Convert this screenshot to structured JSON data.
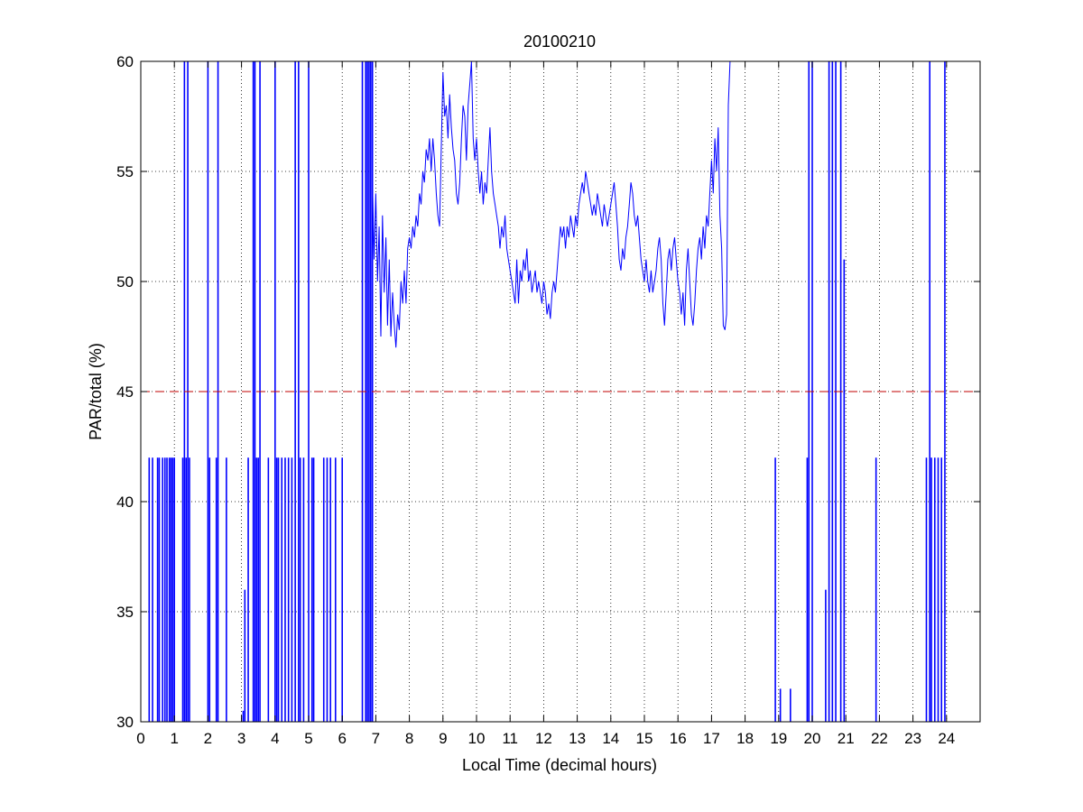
{
  "chart_data": {
    "type": "line",
    "title": "20100210",
    "xlabel": "Local Time (decimal hours)",
    "ylabel": "PAR/total (%)",
    "xlim": [
      0,
      25
    ],
    "ylim": [
      30,
      60
    ],
    "xticks": [
      "0",
      "1",
      "2",
      "3",
      "4",
      "5",
      "6",
      "7",
      "8",
      "9",
      "10",
      "11",
      "12",
      "13",
      "14",
      "15",
      "16",
      "17",
      "18",
      "19",
      "20",
      "21",
      "22",
      "23",
      "24"
    ],
    "yticks": [
      "30",
      "35",
      "40",
      "45",
      "50",
      "55",
      "60"
    ],
    "grid": true,
    "colors": {
      "series": "#0000ff",
      "threshold": "#c00000"
    },
    "threshold": {
      "y": 45,
      "style": "dashed"
    },
    "series": [
      {
        "style": "line",
        "points": [
          [
            6.9,
            54.5
          ],
          [
            6.95,
            51.0
          ],
          [
            7.0,
            54.0
          ],
          [
            7.05,
            50.0
          ],
          [
            7.1,
            52.5
          ],
          [
            7.15,
            47.5
          ],
          [
            7.2,
            53.0
          ],
          [
            7.25,
            49.5
          ],
          [
            7.3,
            52.0
          ],
          [
            7.35,
            48.0
          ],
          [
            7.4,
            51.0
          ],
          [
            7.45,
            47.5
          ],
          [
            7.5,
            49.5
          ],
          [
            7.55,
            48.0
          ],
          [
            7.6,
            47.0
          ],
          [
            7.65,
            48.5
          ],
          [
            7.7,
            47.8
          ],
          [
            7.75,
            50.0
          ],
          [
            7.8,
            49.0
          ],
          [
            7.85,
            50.5
          ],
          [
            7.9,
            49.0
          ],
          [
            7.95,
            51.5
          ],
          [
            8.0,
            52.0
          ],
          [
            8.05,
            51.5
          ],
          [
            8.1,
            52.5
          ],
          [
            8.15,
            52.0
          ],
          [
            8.2,
            53.0
          ],
          [
            8.25,
            52.5
          ],
          [
            8.3,
            54.0
          ],
          [
            8.35,
            53.5
          ],
          [
            8.4,
            55.0
          ],
          [
            8.45,
            54.5
          ],
          [
            8.5,
            56.0
          ],
          [
            8.55,
            55.5
          ],
          [
            8.6,
            56.5
          ],
          [
            8.65,
            55.0
          ],
          [
            8.7,
            56.5
          ],
          [
            8.75,
            55.5
          ],
          [
            8.8,
            54.0
          ],
          [
            8.85,
            53.0
          ],
          [
            8.9,
            52.5
          ],
          [
            8.95,
            56.0
          ],
          [
            9.0,
            59.5
          ],
          [
            9.05,
            57.5
          ],
          [
            9.1,
            58.0
          ],
          [
            9.15,
            56.5
          ],
          [
            9.2,
            58.5
          ],
          [
            9.25,
            57.0
          ],
          [
            9.3,
            56.0
          ],
          [
            9.35,
            55.5
          ],
          [
            9.4,
            54.0
          ],
          [
            9.45,
            53.5
          ],
          [
            9.5,
            54.5
          ],
          [
            9.55,
            56.5
          ],
          [
            9.6,
            58.0
          ],
          [
            9.65,
            57.5
          ],
          [
            9.7,
            55.5
          ],
          [
            9.75,
            58.0
          ],
          [
            9.8,
            59.0
          ],
          [
            9.85,
            60.0
          ],
          [
            9.9,
            56.5
          ],
          [
            9.95,
            55.5
          ],
          [
            10.0,
            56.5
          ],
          [
            10.05,
            55.0
          ],
          [
            10.1,
            54.0
          ],
          [
            10.15,
            55.0
          ],
          [
            10.2,
            53.5
          ],
          [
            10.25,
            54.5
          ],
          [
            10.3,
            54.0
          ],
          [
            10.35,
            55.5
          ],
          [
            10.4,
            57.0
          ],
          [
            10.45,
            55.0
          ],
          [
            10.5,
            54.0
          ],
          [
            10.55,
            53.5
          ],
          [
            10.6,
            53.0
          ],
          [
            10.65,
            52.5
          ],
          [
            10.7,
            51.5
          ],
          [
            10.75,
            52.5
          ],
          [
            10.8,
            52.0
          ],
          [
            10.85,
            53.0
          ],
          [
            10.9,
            51.5
          ],
          [
            10.95,
            51.0
          ],
          [
            11.0,
            50.5
          ],
          [
            11.05,
            50.0
          ],
          [
            11.1,
            49.5
          ],
          [
            11.15,
            49.0
          ],
          [
            11.2,
            51.0
          ],
          [
            11.25,
            49.0
          ],
          [
            11.3,
            50.5
          ],
          [
            11.35,
            50.0
          ],
          [
            11.4,
            51.0
          ],
          [
            11.45,
            50.5
          ],
          [
            11.5,
            51.5
          ],
          [
            11.55,
            50.0
          ],
          [
            11.6,
            50.5
          ],
          [
            11.65,
            49.5
          ],
          [
            11.7,
            50.0
          ],
          [
            11.75,
            50.5
          ],
          [
            11.8,
            49.5
          ],
          [
            11.85,
            50.0
          ],
          [
            11.9,
            49.5
          ],
          [
            11.95,
            49.0
          ],
          [
            12.0,
            50.0
          ],
          [
            12.05,
            49.5
          ],
          [
            12.1,
            48.5
          ],
          [
            12.15,
            49.0
          ],
          [
            12.2,
            48.3
          ],
          [
            12.25,
            49.5
          ],
          [
            12.3,
            50.0
          ],
          [
            12.35,
            49.5
          ],
          [
            12.4,
            50.5
          ],
          [
            12.45,
            51.5
          ],
          [
            12.5,
            52.5
          ],
          [
            12.55,
            52.0
          ],
          [
            12.6,
            52.5
          ],
          [
            12.65,
            51.5
          ],
          [
            12.7,
            52.5
          ],
          [
            12.75,
            52.0
          ],
          [
            12.8,
            53.0
          ],
          [
            12.85,
            52.5
          ],
          [
            12.9,
            52.0
          ],
          [
            12.95,
            53.0
          ],
          [
            13.0,
            52.5
          ],
          [
            13.05,
            53.5
          ],
          [
            13.1,
            54.0
          ],
          [
            13.15,
            54.5
          ],
          [
            13.2,
            54.0
          ],
          [
            13.25,
            55.0
          ],
          [
            13.3,
            54.5
          ],
          [
            13.35,
            54.0
          ],
          [
            13.4,
            53.5
          ],
          [
            13.45,
            53.0
          ],
          [
            13.5,
            53.5
          ],
          [
            13.55,
            53.0
          ],
          [
            13.6,
            54.0
          ],
          [
            13.65,
            53.5
          ],
          [
            13.7,
            53.0
          ],
          [
            13.75,
            52.5
          ],
          [
            13.8,
            53.5
          ],
          [
            13.85,
            53.0
          ],
          [
            13.9,
            52.5
          ],
          [
            13.95,
            53.0
          ],
          [
            14.0,
            53.5
          ],
          [
            14.05,
            54.0
          ],
          [
            14.1,
            54.5
          ],
          [
            14.15,
            53.5
          ],
          [
            14.2,
            52.5
          ],
          [
            14.25,
            51.0
          ],
          [
            14.3,
            50.5
          ],
          [
            14.35,
            51.5
          ],
          [
            14.4,
            51.0
          ],
          [
            14.45,
            52.0
          ],
          [
            14.5,
            52.5
          ],
          [
            14.55,
            53.5
          ],
          [
            14.6,
            54.5
          ],
          [
            14.65,
            54.0
          ],
          [
            14.7,
            53.0
          ],
          [
            14.75,
            52.5
          ],
          [
            14.8,
            53.0
          ],
          [
            14.85,
            52.0
          ],
          [
            14.9,
            51.0
          ],
          [
            14.95,
            50.5
          ],
          [
            15.0,
            50.0
          ],
          [
            15.05,
            51.0
          ],
          [
            15.1,
            50.0
          ],
          [
            15.15,
            49.5
          ],
          [
            15.2,
            50.5
          ],
          [
            15.25,
            49.5
          ],
          [
            15.3,
            50.0
          ],
          [
            15.35,
            50.5
          ],
          [
            15.4,
            51.5
          ],
          [
            15.45,
            52.0
          ],
          [
            15.5,
            51.0
          ],
          [
            15.55,
            49.0
          ],
          [
            15.6,
            48.0
          ],
          [
            15.65,
            49.5
          ],
          [
            15.7,
            51.0
          ],
          [
            15.75,
            51.5
          ],
          [
            15.8,
            50.5
          ],
          [
            15.85,
            51.5
          ],
          [
            15.9,
            52.0
          ],
          [
            15.95,
            51.0
          ],
          [
            16.0,
            50.0
          ],
          [
            16.05,
            49.5
          ],
          [
            16.1,
            48.5
          ],
          [
            16.15,
            49.5
          ],
          [
            16.2,
            48.0
          ],
          [
            16.25,
            50.5
          ],
          [
            16.3,
            51.5
          ],
          [
            16.35,
            50.0
          ],
          [
            16.4,
            48.5
          ],
          [
            16.45,
            48.0
          ],
          [
            16.5,
            49.0
          ],
          [
            16.55,
            50.5
          ],
          [
            16.6,
            51.5
          ],
          [
            16.65,
            52.0
          ],
          [
            16.7,
            51.0
          ],
          [
            16.75,
            52.5
          ],
          [
            16.8,
            51.5
          ],
          [
            16.85,
            53.0
          ],
          [
            16.9,
            52.5
          ],
          [
            16.95,
            54.0
          ],
          [
            17.0,
            55.5
          ],
          [
            17.05,
            54.0
          ],
          [
            17.1,
            56.5
          ],
          [
            17.15,
            55.0
          ],
          [
            17.2,
            57.0
          ],
          [
            17.25,
            53.0
          ],
          [
            17.3,
            51.5
          ],
          [
            17.35,
            48.0
          ],
          [
            17.4,
            47.8
          ],
          [
            17.45,
            48.5
          ],
          [
            17.5,
            58.0
          ],
          [
            17.55,
            60.0
          ]
        ]
      },
      {
        "style": "spikes",
        "x": [
          0.25,
          0.35,
          0.5,
          0.55,
          0.65,
          0.72,
          0.78,
          0.85,
          0.9,
          0.95,
          1.0,
          1.25,
          1.3,
          1.35,
          1.4,
          1.45,
          2.0,
          2.05,
          2.25,
          2.3,
          2.55,
          3.05,
          3.1,
          3.2,
          3.35,
          3.4,
          3.45,
          3.5,
          3.55,
          3.8,
          4.0,
          4.05,
          4.1,
          4.2,
          4.3,
          4.4,
          4.5,
          4.6,
          4.7,
          4.75,
          4.85,
          5.0,
          5.1,
          5.15,
          5.45,
          5.55,
          5.65,
          5.8,
          6.0,
          6.6,
          6.7,
          6.75,
          6.8,
          6.85,
          6.9,
          18.9,
          19.05,
          19.35,
          19.85,
          19.9,
          20.0,
          20.4,
          20.5,
          20.6,
          20.7,
          20.85,
          20.95,
          21.9,
          23.4,
          23.5,
          23.55,
          23.65,
          23.75,
          23.85,
          23.95
        ],
        "top": [
          42,
          42,
          42,
          42,
          42,
          42,
          42,
          42,
          42,
          42,
          42,
          42,
          60,
          42,
          60,
          42,
          60,
          42,
          42,
          60,
          42,
          30.5,
          36,
          42,
          60,
          60,
          42,
          42,
          60,
          42,
          60,
          42,
          42,
          42,
          42,
          42,
          42,
          60,
          60,
          42,
          42,
          60,
          42,
          42,
          42,
          42,
          42,
          42,
          42,
          60,
          60,
          60,
          60,
          60,
          60,
          42,
          31.5,
          31.5,
          42,
          60,
          60,
          36,
          60,
          60,
          60,
          60,
          51,
          42,
          42,
          60,
          42,
          42,
          42,
          42,
          60
        ]
      }
    ]
  }
}
